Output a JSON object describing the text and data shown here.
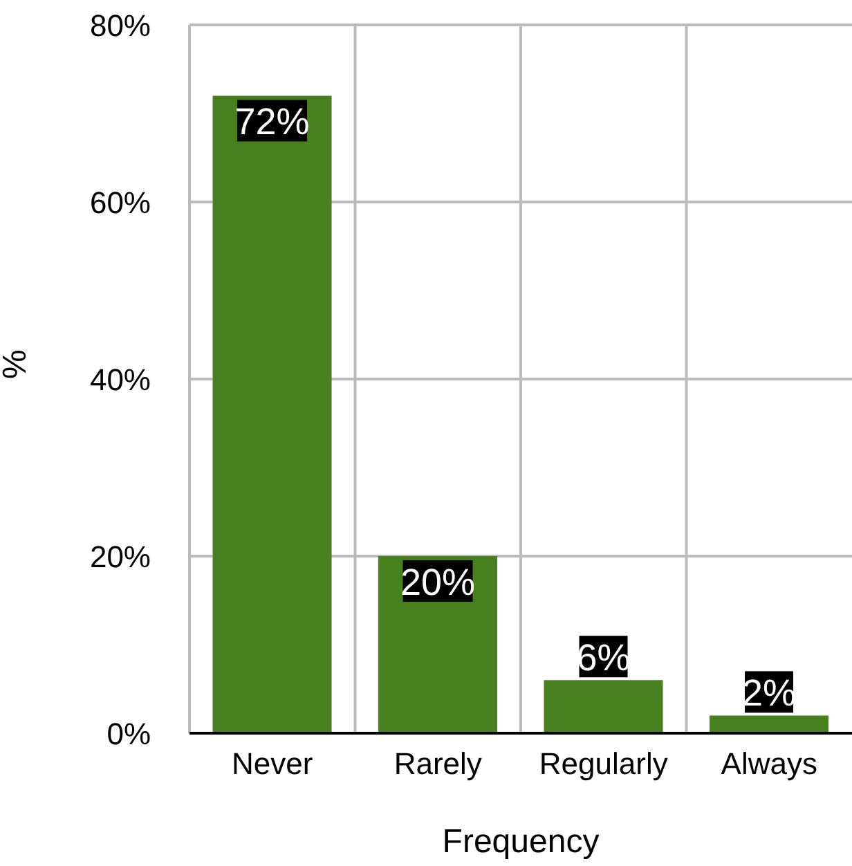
{
  "chart_data": {
    "type": "bar",
    "xlabel": "Frequency",
    "ylabel": "%",
    "categories": [
      "Never",
      "Rarely",
      "Regularly",
      "Always"
    ],
    "values": [
      72,
      20,
      6,
      2
    ],
    "color": "#47801e",
    "value_labels": [
      "72%",
      "20%",
      "6%",
      "2%"
    ],
    "ylim": [
      0,
      80
    ],
    "yticks": [
      {
        "value": 0,
        "label": "0%"
      },
      {
        "value": 20,
        "label": "20%"
      },
      {
        "value": 40,
        "label": "40%"
      },
      {
        "value": 60,
        "label": "60%"
      },
      {
        "value": 80,
        "label": "80%"
      }
    ],
    "grid": true
  }
}
